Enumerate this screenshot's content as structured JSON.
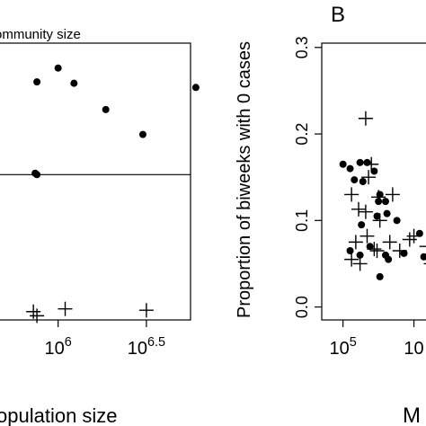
{
  "panel_b_label": "B",
  "chart_data": [
    {
      "type": "scatter",
      "panel": "A",
      "title": "ommunity size",
      "xlabel": "opulation size",
      "x_scale": "log10",
      "xlim_log10": [
        5.62,
        6.75
      ],
      "x_ticks": [
        {
          "log10": 6.0,
          "base": "10",
          "exp": "6"
        },
        {
          "log10": 6.5,
          "base": "10",
          "exp": "6.5"
        }
      ],
      "hline_fraction_of_ylim": 0.525,
      "ylim": [
        0,
        1
      ],
      "series": [
        {
          "marker": "dot",
          "points": [
            {
              "x_log10": 6.0,
              "y": 0.91
            },
            {
              "x_log10": 5.88,
              "y": 0.86
            },
            {
              "x_log10": 6.09,
              "y": 0.855
            },
            {
              "x_log10": 6.78,
              "y": 0.84
            },
            {
              "x_log10": 6.27,
              "y": 0.76
            },
            {
              "x_log10": 6.48,
              "y": 0.67
            },
            {
              "x_log10": 5.87,
              "y": 0.53
            },
            {
              "x_log10": 5.88,
              "y": 0.525
            }
          ]
        },
        {
          "marker": "plus",
          "points": [
            {
              "x_log10": 5.86,
              "y": 0.03
            },
            {
              "x_log10": 5.88,
              "y": 0.015
            },
            {
              "x_log10": 6.04,
              "y": 0.04
            },
            {
              "x_log10": 6.5,
              "y": 0.035
            }
          ]
        }
      ]
    },
    {
      "type": "scatter",
      "panel": "B",
      "ylabel": "Proportion of biweeks with 0 cases",
      "xlabel": "M",
      "x_scale": "log10",
      "xlim_log10": [
        4.85,
        5.75
      ],
      "ylim": [
        -0.015,
        0.305
      ],
      "y_ticks": [
        "0.0",
        "0.1",
        "0.2",
        "0.3"
      ],
      "x_ticks": [
        {
          "log10": 5.0,
          "base": "10",
          "exp": "5"
        },
        {
          "log10": 5.5,
          "base": "10",
          "exp": ""
        }
      ],
      "series": [
        {
          "marker": "dot",
          "points": [
            {
              "x_log10": 5.0,
              "y": 0.165
            },
            {
              "x_log10": 5.05,
              "y": 0.16
            },
            {
              "x_log10": 5.12,
              "y": 0.167
            },
            {
              "x_log10": 5.17,
              "y": 0.167
            },
            {
              "x_log10": 5.22,
              "y": 0.157
            },
            {
              "x_log10": 5.08,
              "y": 0.147
            },
            {
              "x_log10": 5.14,
              "y": 0.145
            },
            {
              "x_log10": 5.26,
              "y": 0.13
            },
            {
              "x_log10": 5.25,
              "y": 0.122
            },
            {
              "x_log10": 5.3,
              "y": 0.122
            },
            {
              "x_log10": 5.13,
              "y": 0.095
            },
            {
              "x_log10": 5.24,
              "y": 0.105
            },
            {
              "x_log10": 5.31,
              "y": 0.108
            },
            {
              "x_log10": 5.38,
              "y": 0.1
            },
            {
              "x_log10": 5.05,
              "y": 0.065
            },
            {
              "x_log10": 5.12,
              "y": 0.06
            },
            {
              "x_log10": 5.19,
              "y": 0.07
            },
            {
              "x_log10": 5.3,
              "y": 0.06
            },
            {
              "x_log10": 5.43,
              "y": 0.062
            },
            {
              "x_log10": 5.32,
              "y": 0.055
            },
            {
              "x_log10": 5.26,
              "y": 0.035
            },
            {
              "x_log10": 5.54,
              "y": 0.085
            },
            {
              "x_log10": 5.57,
              "y": 0.058
            },
            {
              "x_log10": 5.65,
              "y": 0.045
            }
          ]
        },
        {
          "marker": "plus",
          "points": [
            {
              "x_log10": 5.16,
              "y": 0.218
            },
            {
              "x_log10": 5.2,
              "y": 0.165
            },
            {
              "x_log10": 5.18,
              "y": 0.15
            },
            {
              "x_log10": 5.06,
              "y": 0.13
            },
            {
              "x_log10": 5.25,
              "y": 0.127
            },
            {
              "x_log10": 5.35,
              "y": 0.13
            },
            {
              "x_log10": 5.11,
              "y": 0.113
            },
            {
              "x_log10": 5.16,
              "y": 0.11
            },
            {
              "x_log10": 5.26,
              "y": 0.1
            },
            {
              "x_log10": 5.09,
              "y": 0.075
            },
            {
              "x_log10": 5.17,
              "y": 0.082
            },
            {
              "x_log10": 5.33,
              "y": 0.075
            },
            {
              "x_log10": 5.4,
              "y": 0.065
            },
            {
              "x_log10": 5.22,
              "y": 0.067
            },
            {
              "x_log10": 5.24,
              "y": 0.065
            },
            {
              "x_log10": 5.47,
              "y": 0.078
            },
            {
              "x_log10": 5.06,
              "y": 0.055
            },
            {
              "x_log10": 5.12,
              "y": 0.05
            },
            {
              "x_log10": 5.5,
              "y": 0.082
            },
            {
              "x_log10": 5.59,
              "y": 0.07
            },
            {
              "x_log10": 5.62,
              "y": 0.05
            }
          ]
        }
      ]
    }
  ]
}
